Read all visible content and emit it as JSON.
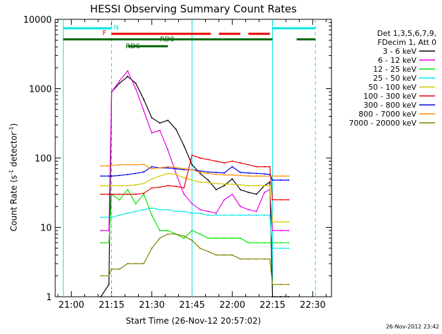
{
  "chart_data": {
    "type": "line",
    "title": "HESSI Observing Summary Count Rates",
    "xlabel": "Start Time (26-Nov-12 20:57:02)",
    "ylabel": "Count Rate (s⁻¹ detector⁻¹)",
    "ylabel_parts": [
      "Count Rate (s",
      "-1",
      " detector",
      "-1",
      ")"
    ],
    "y_scale": "log",
    "xlim": [
      "20:54",
      "22:37"
    ],
    "ylim": [
      1,
      10000
    ],
    "x_ticks": [
      "21:00",
      "21:15",
      "21:30",
      "21:45",
      "22:00",
      "22:15",
      "22:30"
    ],
    "y_ticks": [
      "1",
      "10",
      "100",
      "1000",
      "10000"
    ],
    "timestamp": "26-Nov-2012 23:42",
    "legend": {
      "header": [
        "Det 1,3,5,6,7,9,",
        "FDecim 1, Att 0"
      ],
      "placement": "right"
    },
    "flags": [
      {
        "label": "N",
        "color": "#00e5e5",
        "segments": [
          [
            "20:57",
            "21:15"
          ],
          [
            "22:15",
            "22:31"
          ]
        ]
      },
      {
        "label": "F",
        "color": "#e60000",
        "segments": [
          [
            "21:15",
            "21:52"
          ],
          [
            "21:55",
            "22:03"
          ],
          [
            "22:06",
            "22:14"
          ]
        ]
      },
      {
        "label": "RD0",
        "color": "#006400",
        "segments": [
          [
            "20:57",
            "21:45"
          ],
          [
            "21:45",
            "22:15"
          ],
          [
            "22:24",
            "22:31"
          ]
        ]
      },
      {
        "label": "RD6",
        "color": "#006400",
        "segments": [
          [
            "21:21",
            "21:36"
          ]
        ]
      }
    ],
    "markers": [
      {
        "time": "20:57",
        "style": "solid",
        "color": "#00e5e5"
      },
      {
        "time": "21:15",
        "style": "dashed",
        "color": "#00e5e5"
      },
      {
        "time": "21:45",
        "style": "solid",
        "color": "#00e5e5"
      },
      {
        "time": "22:15",
        "style": "solid",
        "color": "#00e5e5"
      },
      {
        "time": "22:31",
        "style": "dashed",
        "color": "#00e5e5"
      }
    ],
    "series": [
      {
        "name": "3 - 6 keV",
        "color": "#000000",
        "x": [
          "21:11",
          "21:14",
          "21:15",
          "21:18",
          "21:21",
          "21:24",
          "21:27",
          "21:30",
          "21:33",
          "21:36",
          "21:39",
          "21:42",
          "21:45",
          "21:48",
          "21:51",
          "21:54",
          "21:57",
          "22:00",
          "22:03",
          "22:06",
          "22:09",
          "22:12",
          "22:14",
          "22:15",
          "22:18",
          "22:21"
        ],
        "y": [
          1,
          1.5,
          900,
          1200,
          1500,
          1200,
          700,
          380,
          320,
          350,
          260,
          150,
          80,
          60,
          48,
          35,
          40,
          50,
          35,
          32,
          30,
          40,
          45,
          1,
          1,
          1
        ]
      },
      {
        "name": "6 - 12 keV",
        "color": "#e600e6",
        "x": [
          "21:11",
          "21:14",
          "21:15",
          "21:18",
          "21:21",
          "21:24",
          "21:27",
          "21:30",
          "21:33",
          "21:36",
          "21:39",
          "21:42",
          "21:45",
          "21:48",
          "21:51",
          "21:54",
          "21:57",
          "22:00",
          "22:03",
          "22:06",
          "22:09",
          "22:12",
          "22:14",
          "22:15",
          "22:18",
          "22:21"
        ],
        "y": [
          9,
          9,
          900,
          1300,
          1800,
          1000,
          480,
          230,
          250,
          130,
          60,
          30,
          22,
          18,
          17,
          16,
          25,
          30,
          20,
          18,
          17,
          32,
          35,
          9,
          9,
          9
        ]
      },
      {
        "name": "12 - 25 keV",
        "color": "#00e600",
        "x": [
          "21:11",
          "21:14",
          "21:15",
          "21:18",
          "21:21",
          "21:24",
          "21:27",
          "21:30",
          "21:33",
          "21:36",
          "21:39",
          "21:42",
          "21:45",
          "21:48",
          "21:51",
          "21:54",
          "21:57",
          "22:00",
          "22:03",
          "22:06",
          "22:09",
          "22:12",
          "22:14",
          "22:15",
          "22:18",
          "22:21"
        ],
        "y": [
          6,
          6,
          30,
          25,
          35,
          22,
          30,
          15,
          9,
          9,
          8,
          7,
          9,
          8,
          7,
          7,
          7,
          7,
          7,
          6,
          6,
          6,
          6,
          6,
          6,
          6
        ]
      },
      {
        "name": "25 - 50 keV",
        "color": "#00e5e5",
        "x": [
          "21:11",
          "21:14",
          "21:15",
          "21:18",
          "21:21",
          "21:24",
          "21:27",
          "21:30",
          "21:33",
          "21:36",
          "21:39",
          "21:42",
          "21:45",
          "21:48",
          "21:51",
          "21:54",
          "21:57",
          "22:00",
          "22:03",
          "22:06",
          "22:09",
          "22:12",
          "22:14",
          "22:15",
          "22:18",
          "22:21"
        ],
        "y": [
          14,
          14,
          14,
          15,
          16,
          17,
          18,
          19,
          18,
          18,
          17,
          17,
          16,
          16,
          15,
          15,
          15,
          15,
          15,
          15,
          15,
          15,
          15,
          5,
          5,
          5
        ]
      },
      {
        "name": "50 - 100 keV",
        "color": "#d4c800",
        "x": [
          "21:11",
          "21:14",
          "21:15",
          "21:18",
          "21:21",
          "21:24",
          "21:27",
          "21:30",
          "21:33",
          "21:36",
          "21:39",
          "21:42",
          "21:45",
          "21:48",
          "21:51",
          "21:54",
          "21:57",
          "22:00",
          "22:03",
          "22:06",
          "22:09",
          "22:12",
          "22:14",
          "22:15",
          "22:18",
          "22:21"
        ],
        "y": [
          40,
          40,
          40,
          40,
          40,
          41,
          43,
          50,
          55,
          60,
          58,
          52,
          48,
          45,
          44,
          43,
          42,
          42,
          41,
          40,
          40,
          40,
          40,
          12,
          12,
          12
        ]
      },
      {
        "name": "100 - 300 keV",
        "color": "#e60000",
        "x": [
          "21:11",
          "21:14",
          "21:15",
          "21:18",
          "21:21",
          "21:24",
          "21:27",
          "21:30",
          "21:33",
          "21:36",
          "21:39",
          "21:42",
          "21:45",
          "21:48",
          "21:51",
          "21:54",
          "21:57",
          "22:00",
          "22:03",
          "22:06",
          "22:09",
          "22:12",
          "22:14",
          "22:15",
          "22:18",
          "22:21"
        ],
        "y": [
          30,
          30,
          30,
          30,
          30,
          30,
          31,
          37,
          38,
          40,
          39,
          37,
          110,
          100,
          95,
          90,
          85,
          90,
          85,
          80,
          75,
          75,
          75,
          25,
          25,
          25
        ]
      },
      {
        "name": "300 - 800 keV",
        "color": "#0000e6",
        "x": [
          "21:11",
          "21:14",
          "21:15",
          "21:18",
          "21:21",
          "21:24",
          "21:27",
          "21:30",
          "21:33",
          "21:36",
          "21:39",
          "21:42",
          "21:45",
          "21:48",
          "21:51",
          "21:54",
          "21:57",
          "22:00",
          "22:03",
          "22:06",
          "22:09",
          "22:12",
          "22:14",
          "22:15",
          "22:18",
          "22:21"
        ],
        "y": [
          55,
          55,
          55,
          56,
          58,
          60,
          63,
          75,
          72,
          72,
          70,
          68,
          68,
          65,
          63,
          62,
          61,
          75,
          62,
          61,
          60,
          59,
          58,
          48,
          48,
          48
        ]
      },
      {
        "name": "800 - 7000 keV",
        "color": "#ff8c00",
        "x": [
          "21:11",
          "21:14",
          "21:15",
          "21:18",
          "21:21",
          "21:24",
          "21:27",
          "21:30",
          "21:33",
          "21:36",
          "21:39",
          "21:42",
          "21:45",
          "21:48",
          "21:51",
          "21:54",
          "21:57",
          "22:00",
          "22:03",
          "22:06",
          "22:09",
          "22:12",
          "22:14",
          "22:15",
          "22:18",
          "22:21"
        ],
        "y": [
          77,
          77,
          78,
          80,
          80,
          80,
          81,
          70,
          72,
          75,
          73,
          70,
          68,
          62,
          60,
          58,
          57,
          57,
          56,
          55,
          55,
          55,
          55,
          55,
          55,
          55
        ]
      },
      {
        "name": "7000 - 20000 keV",
        "color": "#808000",
        "x": [
          "21:11",
          "21:14",
          "21:15",
          "21:18",
          "21:21",
          "21:24",
          "21:27",
          "21:30",
          "21:33",
          "21:36",
          "21:39",
          "21:42",
          "21:45",
          "21:48",
          "21:51",
          "21:54",
          "21:57",
          "22:00",
          "22:03",
          "22:06",
          "22:09",
          "22:12",
          "22:14",
          "22:15",
          "22:18",
          "22:21"
        ],
        "y": [
          2,
          2,
          2.5,
          2.5,
          3,
          3,
          3,
          5,
          7,
          8,
          8,
          7.5,
          6.5,
          5,
          4.5,
          4,
          4,
          4,
          3.5,
          3.5,
          3.5,
          3.5,
          3.5,
          1.5,
          1.5,
          1.5
        ]
      }
    ]
  }
}
